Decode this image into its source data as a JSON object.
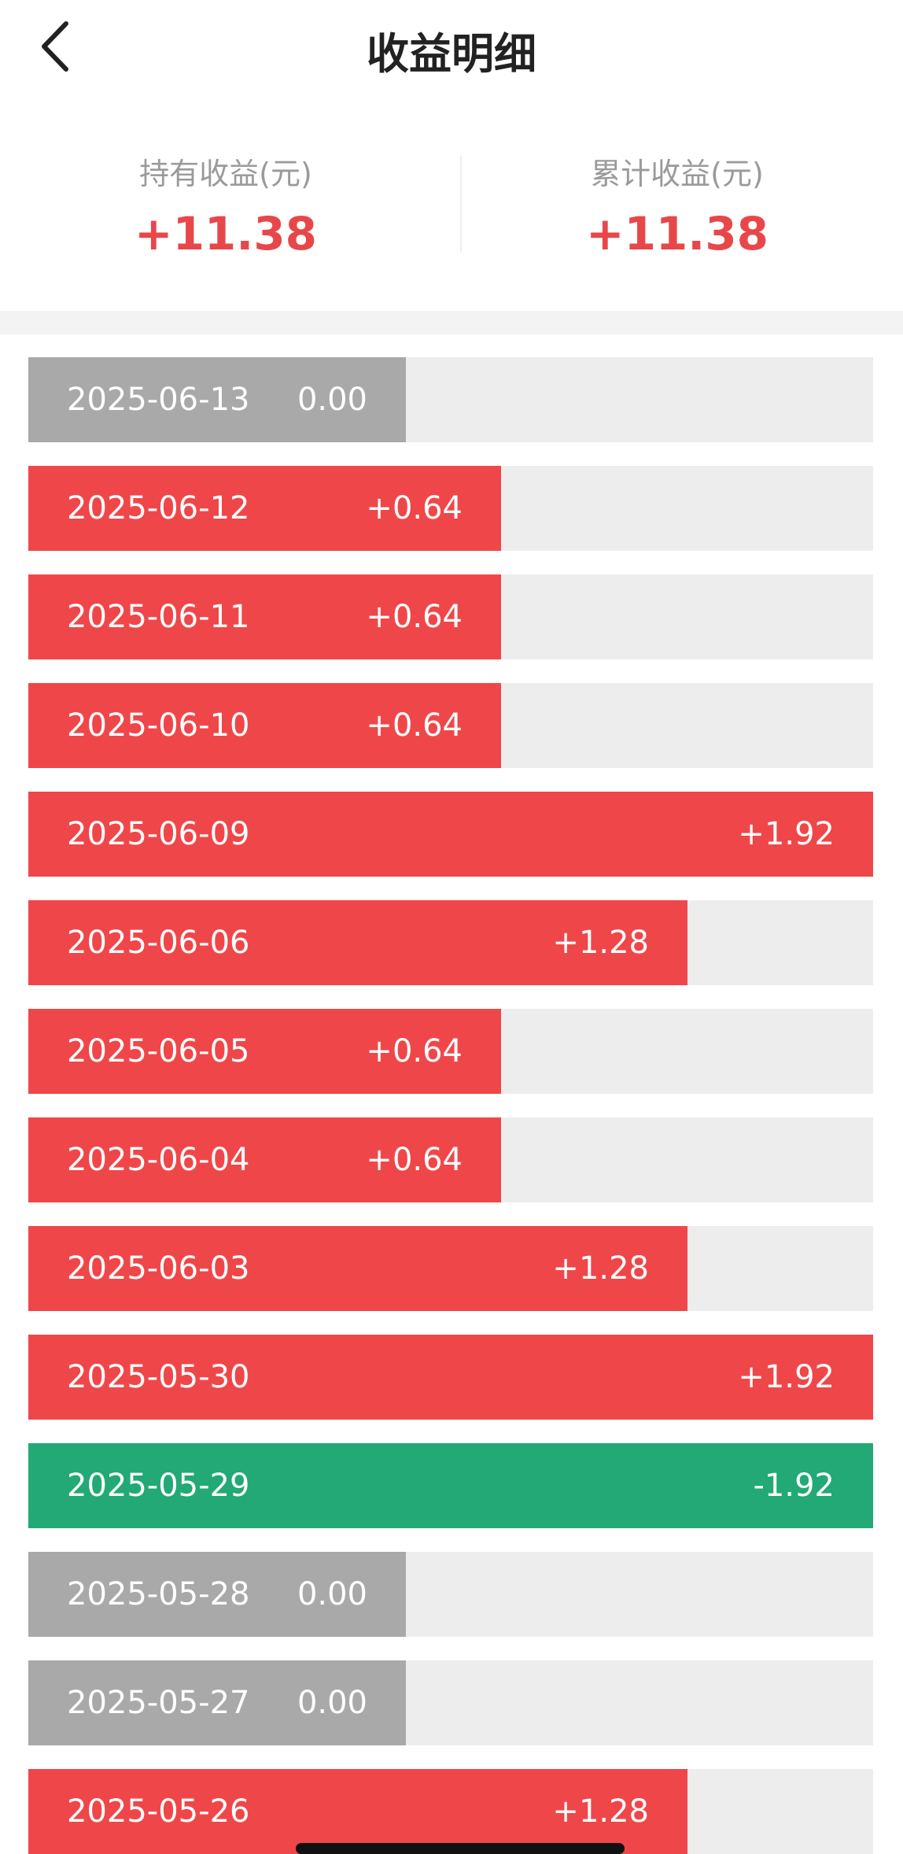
{
  "header": {
    "title": "收益明细"
  },
  "summary": {
    "holding_label": "持有收益(元)",
    "holding_value": "+11.38",
    "cumulative_label": "累计收益(元)",
    "cumulative_value": "+11.38"
  },
  "colors": {
    "positive": "#ef4749",
    "negative": "#22a975",
    "zero": "#a9a9a9",
    "track": "#ededed"
  },
  "rows": [
    {
      "date": "2025-06-13",
      "amount": "0.00",
      "value": 0
    },
    {
      "date": "2025-06-12",
      "amount": "+0.64",
      "value": 0.64
    },
    {
      "date": "2025-06-11",
      "amount": "+0.64",
      "value": 0.64
    },
    {
      "date": "2025-06-10",
      "amount": "+0.64",
      "value": 0.64
    },
    {
      "date": "2025-06-09",
      "amount": "+1.92",
      "value": 1.92
    },
    {
      "date": "2025-06-06",
      "amount": "+1.28",
      "value": 1.28
    },
    {
      "date": "2025-06-05",
      "amount": "+0.64",
      "value": 0.64
    },
    {
      "date": "2025-06-04",
      "amount": "+0.64",
      "value": 0.64
    },
    {
      "date": "2025-06-03",
      "amount": "+1.28",
      "value": 1.28
    },
    {
      "date": "2025-05-30",
      "amount": "+1.92",
      "value": 1.92
    },
    {
      "date": "2025-05-29",
      "amount": "-1.92",
      "value": -1.92
    },
    {
      "date": "2025-05-28",
      "amount": "0.00",
      "value": 0
    },
    {
      "date": "2025-05-27",
      "amount": "0.00",
      "value": 0
    },
    {
      "date": "2025-05-26",
      "amount": "+1.28",
      "value": 1.28
    }
  ]
}
